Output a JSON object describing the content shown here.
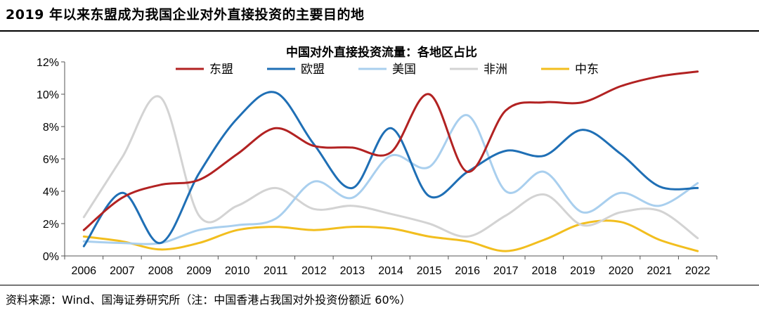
{
  "page": {
    "figure_title": "2019 年以来东盟成为我国企业对外直接投资的主要目的地",
    "source_note": "资料来源：Wind、国海证券研究所（注：中国香港占我国对外投资份额近 60%）"
  },
  "chart_data": {
    "type": "line",
    "title": "中国对外直接投资流量：各地区占比",
    "xlabel": "",
    "ylabel": "",
    "x": [
      "2006",
      "2007",
      "2008",
      "2009",
      "2010",
      "2011",
      "2012",
      "2013",
      "2014",
      "2015",
      "2016",
      "2017",
      "2018",
      "2019",
      "2020",
      "2021",
      "2022"
    ],
    "ylim": [
      0,
      12
    ],
    "yticks": [
      0,
      2,
      4,
      6,
      8,
      10,
      12
    ],
    "ytick_labels": [
      "0%",
      "2%",
      "4%",
      "6%",
      "8%",
      "10%",
      "12%"
    ],
    "grid": false,
    "legend_position": "top",
    "series": [
      {
        "name": "东盟",
        "color": "#b22222",
        "values": [
          1.6,
          3.6,
          4.4,
          4.7,
          6.3,
          7.9,
          6.8,
          6.7,
          6.4,
          10.0,
          5.2,
          9.0,
          9.5,
          9.5,
          10.5,
          11.1,
          11.4
        ]
      },
      {
        "name": "欧盟",
        "color": "#1f6fb5",
        "values": [
          0.6,
          3.9,
          0.8,
          5.1,
          8.5,
          10.1,
          6.9,
          4.2,
          7.9,
          3.7,
          5.2,
          6.5,
          6.2,
          7.8,
          6.3,
          4.3,
          4.2
        ]
      },
      {
        "name": "美国",
        "color": "#a9cfee",
        "values": [
          0.9,
          0.8,
          0.8,
          1.6,
          1.9,
          2.3,
          4.6,
          3.6,
          6.2,
          5.5,
          8.7,
          4.0,
          5.2,
          2.7,
          3.9,
          3.1,
          4.5
        ]
      },
      {
        "name": "非洲",
        "color": "#d3d3d3",
        "values": [
          2.4,
          6.1,
          9.8,
          2.5,
          3.1,
          4.2,
          2.9,
          3.1,
          2.6,
          2.0,
          1.2,
          2.5,
          3.8,
          1.9,
          2.7,
          2.8,
          1.1
        ]
      },
      {
        "name": "中东",
        "color": "#f2be1e",
        "values": [
          1.2,
          0.9,
          0.4,
          0.8,
          1.6,
          1.8,
          1.6,
          1.8,
          1.7,
          1.2,
          0.9,
          0.3,
          1.0,
          2.0,
          2.1,
          1.0,
          0.3
        ]
      }
    ]
  }
}
